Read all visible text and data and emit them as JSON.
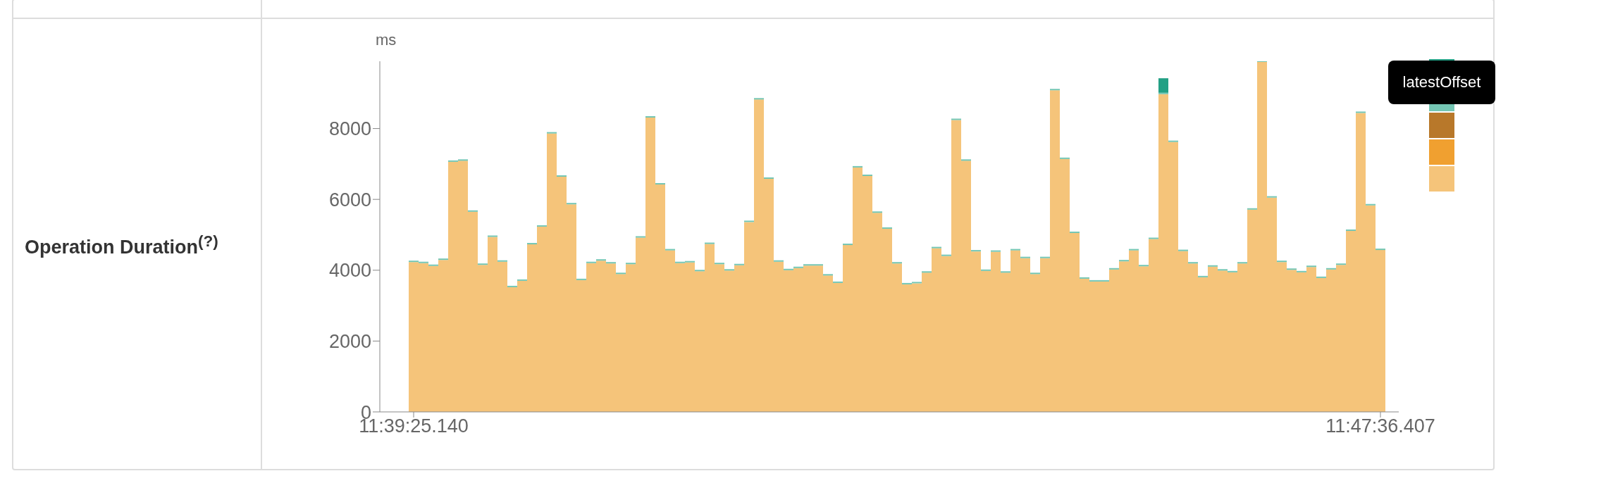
{
  "chart_data": {
    "type": "bar",
    "title": "Operation Duration$^{(?)}$",
    "ylabel": "ms",
    "stacked": true,
    "legend": "right",
    "categories": [
      "11:39:25.140",
      null,
      null,
      null,
      null,
      null,
      null,
      null,
      null,
      null,
      null,
      null,
      null,
      null,
      null,
      null,
      null,
      null,
      null,
      null,
      null,
      null,
      null,
      null,
      null,
      null,
      null,
      null,
      null,
      null,
      null,
      null,
      null,
      null,
      null,
      null,
      null,
      null,
      null,
      null,
      null,
      null,
      null,
      null,
      null,
      null,
      null,
      null,
      null,
      null,
      null,
      null,
      null,
      null,
      null,
      null,
      null,
      null,
      null,
      null,
      null,
      null,
      null,
      null,
      null,
      null,
      null,
      null,
      null,
      null,
      null,
      null,
      null,
      null,
      null,
      null,
      null,
      null,
      null,
      null,
      null,
      null,
      null,
      null,
      null,
      null,
      null,
      null,
      null,
      null,
      null,
      null,
      null,
      null,
      null,
      null,
      null,
      null,
      "11:47:36.407"
    ],
    "series": [
      {
        "color": "#f5c47a",
        "values": [
          4230,
          4200,
          4120,
          4290,
          7060,
          7090,
          5650,
          4150,
          4940,
          4240,
          3520,
          3700,
          4730,
          5230,
          7860,
          6640,
          5860,
          3720,
          4200,
          4270,
          4190,
          3890,
          4170,
          4920,
          8310,
          6420,
          4560,
          4200,
          4220,
          3970,
          4740,
          4170,
          3990,
          4140,
          5360,
          8820,
          6580,
          4240,
          4000,
          4060,
          4130,
          4130,
          3850,
          3640,
          4710,
          6900,
          6660,
          5620,
          5170,
          4190,
          3600,
          3630,
          3930,
          4620,
          4400,
          8240,
          7090,
          4530,
          3980,
          4520,
          3930,
          4560,
          4340,
          3890,
          4340,
          9080,
          7140,
          5050,
          3760,
          3680,
          3680,
          4020,
          4250,
          4560,
          4110,
          4880,
          8970,
          7620,
          4540,
          4190,
          3800,
          4100,
          3990,
          3940,
          4190,
          5710,
          9880,
          6050,
          4230,
          4010,
          3940,
          4090,
          3780,
          4020,
          4150,
          5110,
          8440,
          5830,
          4570
        ]
      },
      {
        "color": "#f0a030",
        "values": [
          0,
          0,
          0,
          0,
          0,
          0,
          0,
          0,
          0,
          0,
          0,
          0,
          0,
          0,
          0,
          0,
          0,
          0,
          0,
          0,
          0,
          0,
          0,
          0,
          0,
          0,
          0,
          0,
          0,
          0,
          0,
          0,
          0,
          0,
          0,
          0,
          0,
          0,
          0,
          0,
          0,
          0,
          0,
          0,
          0,
          0,
          0,
          0,
          0,
          0,
          0,
          0,
          0,
          0,
          0,
          0,
          0,
          0,
          0,
          0,
          0,
          0,
          0,
          0,
          0,
          0,
          0,
          0,
          0,
          0,
          0,
          0,
          0,
          0,
          0,
          0,
          0,
          0,
          0,
          0,
          0,
          0,
          0,
          0,
          0,
          0,
          0,
          0,
          0,
          0,
          0,
          0,
          0,
          0,
          0,
          0,
          0,
          0,
          0
        ]
      },
      {
        "color": "#b8782a",
        "values": [
          0,
          0,
          0,
          0,
          0,
          0,
          0,
          0,
          0,
          0,
          0,
          0,
          0,
          0,
          0,
          0,
          0,
          0,
          0,
          0,
          0,
          0,
          0,
          0,
          0,
          0,
          0,
          0,
          0,
          0,
          0,
          0,
          0,
          0,
          0,
          0,
          0,
          0,
          0,
          0,
          0,
          0,
          0,
          0,
          0,
          0,
          0,
          0,
          0,
          0,
          0,
          0,
          0,
          0,
          0,
          0,
          0,
          0,
          0,
          0,
          0,
          0,
          0,
          0,
          0,
          0,
          0,
          0,
          0,
          0,
          0,
          0,
          0,
          0,
          0,
          0,
          0,
          0,
          0,
          0,
          0,
          0,
          0,
          0,
          0,
          0,
          0,
          0,
          0,
          0,
          0,
          0,
          0,
          0,
          0,
          0,
          0,
          0,
          0
        ]
      },
      {
        "name": "latestOffset",
        "color": "#74c6b3",
        "values": [
          40,
          40,
          40,
          40,
          40,
          40,
          40,
          40,
          40,
          40,
          40,
          40,
          40,
          40,
          40,
          40,
          40,
          40,
          40,
          40,
          40,
          40,
          40,
          40,
          40,
          40,
          40,
          40,
          40,
          40,
          40,
          40,
          40,
          40,
          40,
          40,
          40,
          40,
          40,
          40,
          40,
          40,
          40,
          40,
          40,
          40,
          40,
          40,
          40,
          40,
          40,
          40,
          40,
          40,
          40,
          40,
          40,
          40,
          40,
          40,
          40,
          40,
          40,
          40,
          40,
          40,
          40,
          40,
          40,
          40,
          40,
          40,
          40,
          40,
          40,
          40,
          40,
          40,
          40,
          40,
          40,
          40,
          40,
          40,
          40,
          40,
          40,
          40,
          40,
          40,
          40,
          40,
          40,
          40,
          40,
          40,
          40,
          40,
          40
        ]
      },
      {
        "color": "#23a085",
        "values": [
          0,
          0,
          0,
          0,
          0,
          0,
          0,
          0,
          0,
          0,
          0,
          0,
          0,
          0,
          0,
          0,
          0,
          0,
          0,
          0,
          0,
          0,
          0,
          0,
          0,
          0,
          0,
          0,
          0,
          0,
          0,
          0,
          0,
          0,
          0,
          0,
          0,
          0,
          0,
          0,
          0,
          0,
          0,
          0,
          0,
          0,
          0,
          0,
          0,
          0,
          0,
          0,
          0,
          0,
          0,
          0,
          0,
          0,
          0,
          0,
          0,
          0,
          0,
          0,
          0,
          0,
          0,
          0,
          0,
          0,
          0,
          0,
          0,
          0,
          0,
          0,
          410,
          0,
          0,
          0,
          0,
          0,
          0,
          0,
          0,
          0,
          0,
          0,
          0,
          0,
          0,
          0,
          0,
          0,
          0,
          0,
          0,
          0,
          0
        ]
      }
    ],
    "ylim": [
      0,
      9900
    ],
    "yticks": [
      0,
      2000,
      4000,
      6000,
      8000
    ]
  }
}
